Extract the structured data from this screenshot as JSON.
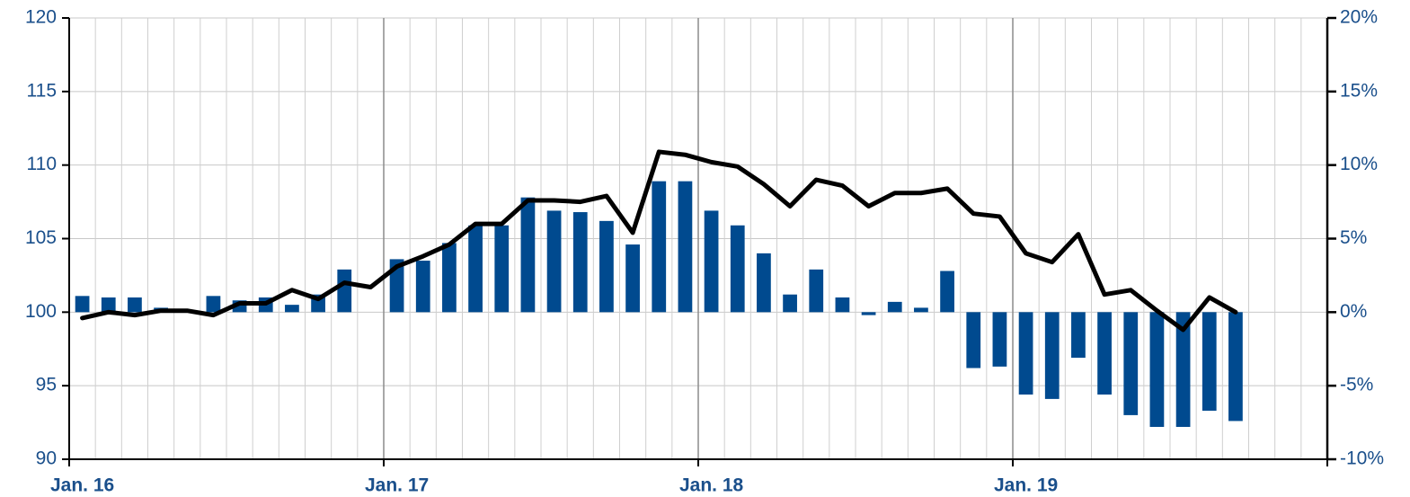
{
  "chart_data": {
    "type": "bar-line",
    "categories": [
      "Jan. 16",
      null,
      null,
      null,
      null,
      null,
      null,
      null,
      null,
      null,
      null,
      null,
      "Jan. 17",
      null,
      null,
      null,
      null,
      null,
      null,
      null,
      null,
      null,
      null,
      null,
      "Jan. 18",
      null,
      null,
      null,
      null,
      null,
      null,
      null,
      null,
      null,
      null,
      null,
      "Jan. 19",
      null,
      null,
      null,
      null,
      null,
      null,
      null,
      null,
      null,
      null,
      null
    ],
    "series": [
      {
        "type": "bar",
        "axis": "y2",
        "color": "#004a8f",
        "values": [
          1.1,
          1.0,
          1.0,
          0.3,
          0,
          1.1,
          0.8,
          1.0,
          0.5,
          1.2,
          2.9,
          null,
          3.6,
          3.5,
          4.7,
          5.9,
          5.9,
          7.8,
          6.9,
          6.8,
          6.2,
          4.6,
          8.9,
          8.9,
          6.9,
          5.9,
          4.0,
          1.2,
          2.9,
          1.0,
          -0.2,
          0.7,
          0.3,
          2.8,
          -3.8,
          -3.7,
          -5.6,
          -5.9,
          -3.1,
          -5.6,
          -7.0,
          -7.8,
          -7.8,
          -6.7,
          -7.4,
          null,
          null,
          null
        ]
      },
      {
        "type": "line",
        "axis": "y",
        "color": "#000000",
        "values": [
          99.6,
          100.0,
          99.8,
          100.1,
          100.1,
          99.8,
          100.6,
          100.6,
          101.5,
          100.9,
          102.0,
          101.7,
          103.1,
          103.8,
          104.6,
          106.0,
          106.0,
          107.6,
          107.6,
          107.5,
          107.9,
          105.4,
          110.9,
          110.7,
          110.2,
          109.9,
          108.7,
          107.2,
          109.0,
          108.6,
          107.2,
          108.1,
          108.1,
          108.4,
          106.7,
          106.5,
          104.0,
          103.4,
          105.3,
          101.2,
          101.5,
          100.1,
          98.8,
          101.0,
          100.0,
          null,
          null,
          null
        ]
      }
    ],
    "ylim": [
      90,
      120
    ],
    "yticks": [
      90,
      95,
      100,
      105,
      110,
      115,
      120
    ],
    "y2lim": [
      -10,
      20
    ],
    "y2ticks": [
      {
        "value": -10,
        "label": "-10%"
      },
      {
        "value": -5,
        "label": "-5%"
      },
      {
        "value": 0,
        "label": "0%"
      },
      {
        "value": 5,
        "label": "5%"
      },
      {
        "value": 10,
        "label": "10%"
      },
      {
        "value": 15,
        "label": "15%"
      },
      {
        "value": 20,
        "label": "20%"
      }
    ],
    "grid": true
  }
}
